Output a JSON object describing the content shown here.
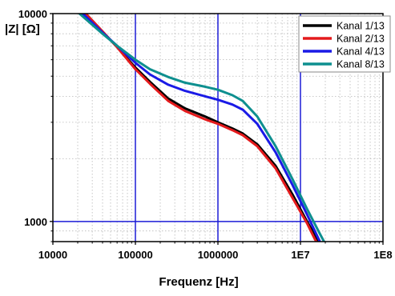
{
  "chart_data": {
    "type": "line",
    "xlabel": "Frequenz [Hz]",
    "ylabel": "|Z| [Ω]",
    "xscale": "log",
    "yscale": "log",
    "xlim": [
      10000,
      100000000
    ],
    "ylim": [
      800,
      10000
    ],
    "x_ticks": [
      {
        "value": 10000,
        "label": "10000"
      },
      {
        "value": 100000,
        "label": "100000"
      },
      {
        "value": 1000000,
        "label": "1000000"
      },
      {
        "value": 10000000,
        "label": "1E7"
      },
      {
        "value": 100000000,
        "label": "1E8"
      }
    ],
    "y_ticks": [
      {
        "value": 1000,
        "label": "1000"
      },
      {
        "value": 10000,
        "label": "10000"
      }
    ],
    "grid": true,
    "legend_position": "top-right",
    "series": [
      {
        "name": "Kanal 1/13",
        "color": "#000000",
        "x": [
          25000,
          40000,
          60000,
          100000,
          150000,
          250000,
          400000,
          700000,
          1000000,
          1500000,
          2000000,
          3000000,
          5000000,
          8000000,
          12000000,
          16000000,
          18000000
        ],
        "y": [
          10000,
          8200,
          6900,
          5500,
          4700,
          3900,
          3500,
          3200,
          3000,
          2800,
          2650,
          2350,
          1850,
          1350,
          1000,
          820,
          760
        ]
      },
      {
        "name": "Kanal 2/13",
        "color": "#e41a1c",
        "x": [
          25000,
          40000,
          60000,
          100000,
          150000,
          250000,
          400000,
          700000,
          1000000,
          1500000,
          2000000,
          3000000,
          5000000,
          8000000,
          12000000,
          15000000,
          17000000
        ],
        "y": [
          10000,
          8200,
          6900,
          5400,
          4600,
          3800,
          3400,
          3100,
          2950,
          2750,
          2600,
          2300,
          1800,
          1300,
          980,
          820,
          760
        ]
      },
      {
        "name": "Kanal 4/13",
        "color": "#1a1ae6",
        "x": [
          23000,
          40000,
          60000,
          100000,
          150000,
          250000,
          400000,
          700000,
          1000000,
          1500000,
          2000000,
          3000000,
          5000000,
          8000000,
          12000000,
          16000000,
          18000000
        ],
        "y": [
          10000,
          8100,
          7000,
          5800,
          5100,
          4550,
          4250,
          4000,
          3850,
          3650,
          3450,
          2950,
          2150,
          1500,
          1080,
          850,
          770
        ]
      },
      {
        "name": "Kanal 8/13",
        "color": "#0e8f8f",
        "x": [
          21000,
          40000,
          60000,
          100000,
          150000,
          250000,
          400000,
          700000,
          1000000,
          1500000,
          2000000,
          3000000,
          5000000,
          8000000,
          12000000,
          17000000,
          20000000
        ],
        "y": [
          10000,
          8000,
          7000,
          6000,
          5400,
          4950,
          4650,
          4450,
          4300,
          4050,
          3800,
          3200,
          2300,
          1600,
          1150,
          880,
          780
        ]
      }
    ]
  }
}
